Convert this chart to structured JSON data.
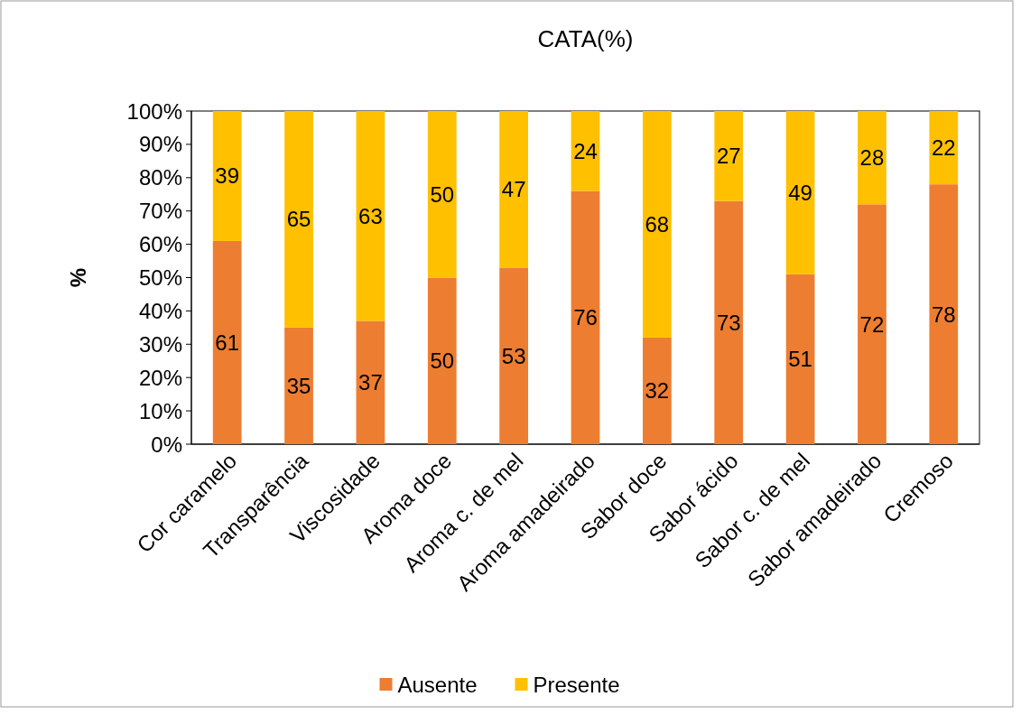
{
  "chart_data": {
    "type": "bar",
    "title": "CATA(%)",
    "ylabel": "%",
    "stacked": true,
    "data_labels": true,
    "legend": "bottom",
    "grid": false,
    "categories": [
      "Cor caramelo",
      "Transparência",
      "Viscosidade",
      "Aroma doce",
      "Aroma c. de mel",
      "Aroma amadeirado",
      "Sabor doce",
      "Sabor ácido",
      "Sabor c. de mel",
      "Sabor amadeirado",
      "Cremoso"
    ],
    "series": [
      {
        "name": "Ausente",
        "color": "#ed7d31",
        "values": [
          61,
          35,
          37,
          50,
          53,
          76,
          32,
          73,
          51,
          72,
          78
        ]
      },
      {
        "name": "Presente",
        "color": "#ffc000",
        "values": [
          39,
          65,
          63,
          50,
          47,
          24,
          68,
          27,
          49,
          28,
          22
        ]
      }
    ],
    "ylim": [
      0,
      100
    ],
    "yticks": [
      {
        "value": 0,
        "label": "0%"
      },
      {
        "value": 10,
        "label": "10%"
      },
      {
        "value": 20,
        "label": "20%"
      },
      {
        "value": 30,
        "label": "30%"
      },
      {
        "value": 40,
        "label": "40%"
      },
      {
        "value": 50,
        "label": "50%"
      },
      {
        "value": 60,
        "label": "60%"
      },
      {
        "value": 70,
        "label": "70%"
      },
      {
        "value": 80,
        "label": "80%"
      },
      {
        "value": 90,
        "label": "90%"
      },
      {
        "value": 100,
        "label": "100%"
      }
    ]
  }
}
